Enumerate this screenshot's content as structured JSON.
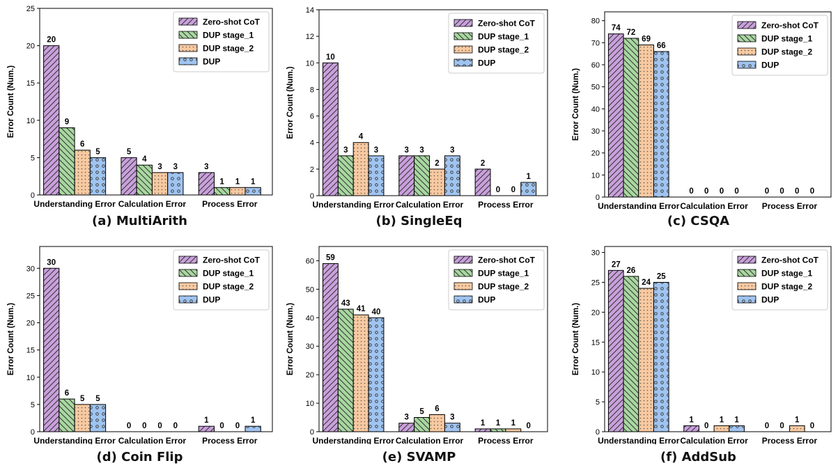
{
  "chart_data": [
    {
      "type": "bar",
      "caption": "(a) MultiArith",
      "categories": [
        "Understanding Error",
        "Calculation Error",
        "Process Error"
      ],
      "ylabel": "Error Count (Num.)",
      "ylim": [
        0,
        25
      ],
      "yticks": [
        0,
        5,
        10,
        15,
        20,
        25
      ],
      "legend_position": "top-right",
      "series": [
        {
          "name": "Zero-shot CoT",
          "values": [
            20,
            5,
            3
          ]
        },
        {
          "name": "DUP stage_1",
          "values": [
            9,
            4,
            1
          ]
        },
        {
          "name": "DUP stage_2",
          "values": [
            6,
            3,
            1
          ]
        },
        {
          "name": "DUP",
          "values": [
            5,
            3,
            1
          ]
        }
      ]
    },
    {
      "type": "bar",
      "caption": "(b) SingleEq",
      "categories": [
        "Understanding Error",
        "Calculation Error",
        "Process Error"
      ],
      "ylabel": "Error Count (Num.)",
      "ylim": [
        0,
        14
      ],
      "yticks": [
        0,
        2,
        4,
        6,
        8,
        10,
        12,
        14
      ],
      "legend_position": "top-right",
      "series": [
        {
          "name": "Zero-shot CoT",
          "values": [
            10,
            3,
            2
          ]
        },
        {
          "name": "DUP stage_1",
          "values": [
            3,
            3,
            0
          ]
        },
        {
          "name": "DUP stage_2",
          "values": [
            4,
            2,
            0
          ]
        },
        {
          "name": "DUP",
          "values": [
            3,
            3,
            1
          ]
        }
      ]
    },
    {
      "type": "bar",
      "caption": "(c) CSQA",
      "categories": [
        "Understanding Error",
        "Calculation Error",
        "Process Error"
      ],
      "ylabel": "Error Count (Num.)",
      "ylim": [
        0,
        84
      ],
      "yticks": [
        0,
        10,
        20,
        30,
        40,
        50,
        60,
        70,
        80
      ],
      "legend_position": "top-right",
      "series": [
        {
          "name": "Zero-shot CoT",
          "values": [
            74,
            0,
            0
          ]
        },
        {
          "name": "DUP stage_1",
          "values": [
            72,
            0,
            0
          ]
        },
        {
          "name": "DUP stage_2",
          "values": [
            69,
            0,
            0
          ]
        },
        {
          "name": "DUP",
          "values": [
            66,
            0,
            0
          ]
        }
      ]
    },
    {
      "type": "bar",
      "caption": "(d) Coin Flip",
      "categories": [
        "Understanding Error",
        "Calculation Error",
        "Process Error"
      ],
      "ylabel": "Error Count (Num.)",
      "ylim": [
        0,
        34
      ],
      "yticks": [
        0,
        5,
        10,
        15,
        20,
        25,
        30
      ],
      "legend_position": "top-right",
      "series": [
        {
          "name": "Zero-shot CoT",
          "values": [
            30,
            0,
            1
          ]
        },
        {
          "name": "DUP stage_1",
          "values": [
            6,
            0,
            0
          ]
        },
        {
          "name": "DUP stage_2",
          "values": [
            5,
            0,
            0
          ]
        },
        {
          "name": "DUP",
          "values": [
            5,
            0,
            1
          ]
        }
      ]
    },
    {
      "type": "bar",
      "caption": "(e) SVAMP",
      "categories": [
        "Understanding Error",
        "Calculation Error",
        "Process Error"
      ],
      "ylabel": "Error Count (Num.)",
      "ylim": [
        0,
        65
      ],
      "yticks": [
        0,
        10,
        20,
        30,
        40,
        50,
        60
      ],
      "legend_position": "top-right",
      "series": [
        {
          "name": "Zero-shot CoT",
          "values": [
            59,
            3,
            1
          ]
        },
        {
          "name": "DUP stage_1",
          "values": [
            43,
            5,
            1
          ]
        },
        {
          "name": "DUP stage_2",
          "values": [
            41,
            6,
            1
          ]
        },
        {
          "name": "DUP",
          "values": [
            40,
            3,
            0
          ]
        }
      ]
    },
    {
      "type": "bar",
      "caption": "(f) AddSub",
      "categories": [
        "Understanding Error",
        "Calculation Error",
        "Process Error"
      ],
      "ylabel": "Error Count (Num.)",
      "ylim": [
        0,
        31
      ],
      "yticks": [
        0,
        5,
        10,
        15,
        20,
        25,
        30
      ],
      "legend_position": "top-right",
      "series": [
        {
          "name": "Zero-shot CoT",
          "values": [
            27,
            1,
            0
          ]
        },
        {
          "name": "DUP stage_1",
          "values": [
            26,
            0,
            0
          ]
        },
        {
          "name": "DUP stage_2",
          "values": [
            24,
            1,
            1
          ]
        },
        {
          "name": "DUP",
          "values": [
            25,
            1,
            0
          ]
        }
      ]
    }
  ],
  "style": {
    "series_fill": [
      "#c9a0dc",
      "#a8d8a0",
      "#f8c9a0",
      "#a0c4f0"
    ],
    "series_pattern": [
      "diagonal-hatch",
      "back-diagonal-hatch",
      "dots",
      "circles"
    ]
  }
}
